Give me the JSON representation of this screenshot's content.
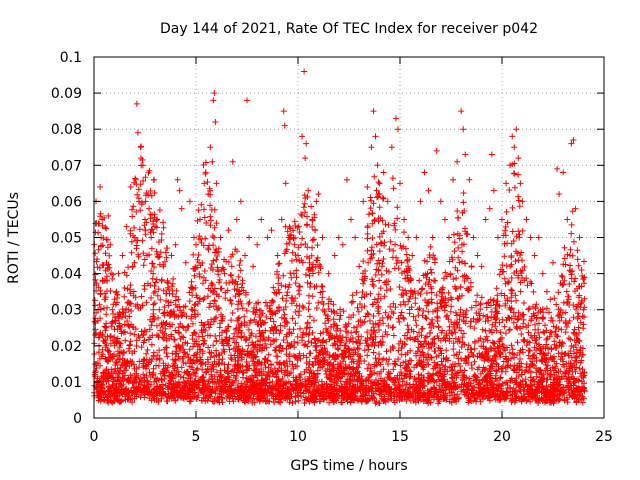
{
  "chart_data": {
    "type": "scatter",
    "title": "Day 144 of 2021, Rate Of TEC Index for receiver p042",
    "xlabel": "GPS time / hours",
    "ylabel": "ROTI / TECUs",
    "xlim": [
      0,
      25
    ],
    "ylim": [
      0,
      0.1
    ],
    "x_ticks": [
      0,
      5,
      10,
      15,
      20,
      25
    ],
    "x_tick_labels": [
      "0",
      "5",
      "10",
      "15",
      "20",
      "25"
    ],
    "y_ticks": [
      0,
      0.01,
      0.02,
      0.03,
      0.04,
      0.05,
      0.06,
      0.07,
      0.08,
      0.09,
      0.1
    ],
    "y_tick_labels": [
      "0",
      "0.01",
      "0.02",
      "0.03",
      "0.04",
      "0.05",
      "0.06",
      "0.07",
      "0.08",
      "0.09",
      "0.1"
    ],
    "grid": true,
    "marker": "plus",
    "color": "#ff0000",
    "points": [
      [
        0.05,
        0.012
      ],
      [
        0.1,
        0.06
      ],
      [
        0.15,
        0.044
      ],
      [
        0.2,
        0.03
      ],
      [
        0.25,
        0.02
      ],
      [
        0.3,
        0.064
      ],
      [
        0.35,
        0.05
      ],
      [
        0.4,
        0.055
      ],
      [
        0.5,
        0.038
      ],
      [
        0.6,
        0.025
      ],
      [
        0.7,
        0.056
      ],
      [
        0.8,
        0.048
      ],
      [
        0.9,
        0.03
      ],
      [
        1.0,
        0.02
      ],
      [
        1.1,
        0.035
      ],
      [
        1.2,
        0.04
      ],
      [
        1.3,
        0.025
      ],
      [
        1.4,
        0.045
      ],
      [
        1.5,
        0.036
      ],
      [
        1.6,
        0.053
      ],
      [
        1.7,
        0.03
      ],
      [
        1.8,
        0.064
      ],
      [
        1.9,
        0.042
      ],
      [
        2.0,
        0.05
      ],
      [
        2.05,
        0.066
      ],
      [
        2.1,
        0.087
      ],
      [
        2.15,
        0.079
      ],
      [
        2.2,
        0.06
      ],
      [
        2.3,
        0.072
      ],
      [
        2.4,
        0.07
      ],
      [
        2.5,
        0.055
      ],
      [
        2.6,
        0.045
      ],
      [
        2.7,
        0.058
      ],
      [
        2.8,
        0.05
      ],
      [
        2.9,
        0.04
      ],
      [
        3.0,
        0.035
      ],
      [
        3.2,
        0.03
      ],
      [
        3.4,
        0.042
      ],
      [
        3.6,
        0.038
      ],
      [
        3.8,
        0.045
      ],
      [
        4.0,
        0.048
      ],
      [
        4.1,
        0.066
      ],
      [
        4.2,
        0.063
      ],
      [
        4.3,
        0.058
      ],
      [
        4.5,
        0.043
      ],
      [
        4.7,
        0.06
      ],
      [
        4.9,
        0.05
      ],
      [
        5.0,
        0.048
      ],
      [
        5.2,
        0.055
      ],
      [
        5.4,
        0.065
      ],
      [
        5.5,
        0.054
      ],
      [
        5.6,
        0.062
      ],
      [
        5.7,
        0.075
      ],
      [
        5.8,
        0.071
      ],
      [
        5.85,
        0.088
      ],
      [
        5.9,
        0.09
      ],
      [
        5.95,
        0.082
      ],
      [
        6.0,
        0.065
      ],
      [
        6.2,
        0.05
      ],
      [
        6.4,
        0.04
      ],
      [
        6.6,
        0.052
      ],
      [
        6.8,
        0.071
      ],
      [
        7.0,
        0.055
      ],
      [
        7.2,
        0.06
      ],
      [
        7.4,
        0.045
      ],
      [
        7.5,
        0.088
      ],
      [
        7.6,
        0.05
      ],
      [
        7.8,
        0.042
      ],
      [
        8.0,
        0.048
      ],
      [
        8.2,
        0.055
      ],
      [
        8.5,
        0.05
      ],
      [
        8.7,
        0.052
      ],
      [
        9.0,
        0.045
      ],
      [
        9.2,
        0.055
      ],
      [
        9.3,
        0.085
      ],
      [
        9.35,
        0.081
      ],
      [
        9.4,
        0.065
      ],
      [
        9.6,
        0.05
      ],
      [
        9.8,
        0.04
      ],
      [
        10.0,
        0.045
      ],
      [
        10.2,
        0.078
      ],
      [
        10.3,
        0.096
      ],
      [
        10.35,
        0.072
      ],
      [
        10.4,
        0.076
      ],
      [
        10.5,
        0.063
      ],
      [
        10.7,
        0.055
      ],
      [
        10.9,
        0.06
      ],
      [
        11.0,
        0.062
      ],
      [
        11.2,
        0.05
      ],
      [
        11.5,
        0.04
      ],
      [
        11.8,
        0.045
      ],
      [
        12.0,
        0.05
      ],
      [
        12.2,
        0.048
      ],
      [
        12.4,
        0.066
      ],
      [
        12.6,
        0.055
      ],
      [
        12.8,
        0.05
      ],
      [
        13.0,
        0.042
      ],
      [
        13.2,
        0.06
      ],
      [
        13.4,
        0.064
      ],
      [
        13.6,
        0.075
      ],
      [
        13.7,
        0.085
      ],
      [
        13.8,
        0.078
      ],
      [
        13.9,
        0.07
      ],
      [
        14.0,
        0.065
      ],
      [
        14.2,
        0.068
      ],
      [
        14.4,
        0.06
      ],
      [
        14.6,
        0.075
      ],
      [
        14.8,
        0.083
      ],
      [
        14.9,
        0.08
      ],
      [
        15.0,
        0.065
      ],
      [
        15.2,
        0.055
      ],
      [
        15.4,
        0.05
      ],
      [
        15.6,
        0.045
      ],
      [
        15.8,
        0.05
      ],
      [
        16.0,
        0.06
      ],
      [
        16.2,
        0.068
      ],
      [
        16.4,
        0.063
      ],
      [
        16.6,
        0.05
      ],
      [
        16.8,
        0.074
      ],
      [
        17.0,
        0.06
      ],
      [
        17.2,
        0.055
      ],
      [
        17.4,
        0.05
      ],
      [
        17.6,
        0.066
      ],
      [
        17.8,
        0.071
      ],
      [
        18.0,
        0.085
      ],
      [
        18.1,
        0.08
      ],
      [
        18.2,
        0.073
      ],
      [
        18.4,
        0.066
      ],
      [
        18.6,
        0.05
      ],
      [
        18.8,
        0.045
      ],
      [
        19.0,
        0.042
      ],
      [
        19.2,
        0.055
      ],
      [
        19.4,
        0.058
      ],
      [
        19.5,
        0.073
      ],
      [
        19.6,
        0.063
      ],
      [
        19.8,
        0.05
      ],
      [
        20.0,
        0.055
      ],
      [
        20.2,
        0.065
      ],
      [
        20.4,
        0.07
      ],
      [
        20.5,
        0.078
      ],
      [
        20.6,
        0.075
      ],
      [
        20.7,
        0.08
      ],
      [
        20.8,
        0.072
      ],
      [
        20.9,
        0.065
      ],
      [
        21.0,
        0.06
      ],
      [
        21.2,
        0.055
      ],
      [
        21.4,
        0.05
      ],
      [
        21.6,
        0.045
      ],
      [
        21.8,
        0.05
      ],
      [
        22.0,
        0.04
      ],
      [
        22.2,
        0.035
      ],
      [
        22.5,
        0.043
      ],
      [
        22.7,
        0.069
      ],
      [
        22.8,
        0.062
      ],
      [
        23.0,
        0.068
      ],
      [
        23.2,
        0.055
      ],
      [
        23.4,
        0.076
      ],
      [
        23.5,
        0.077
      ],
      [
        23.6,
        0.058
      ],
      [
        23.8,
        0.05
      ],
      [
        23.9,
        0.041
      ],
      [
        24.0,
        0.03
      ]
    ]
  }
}
